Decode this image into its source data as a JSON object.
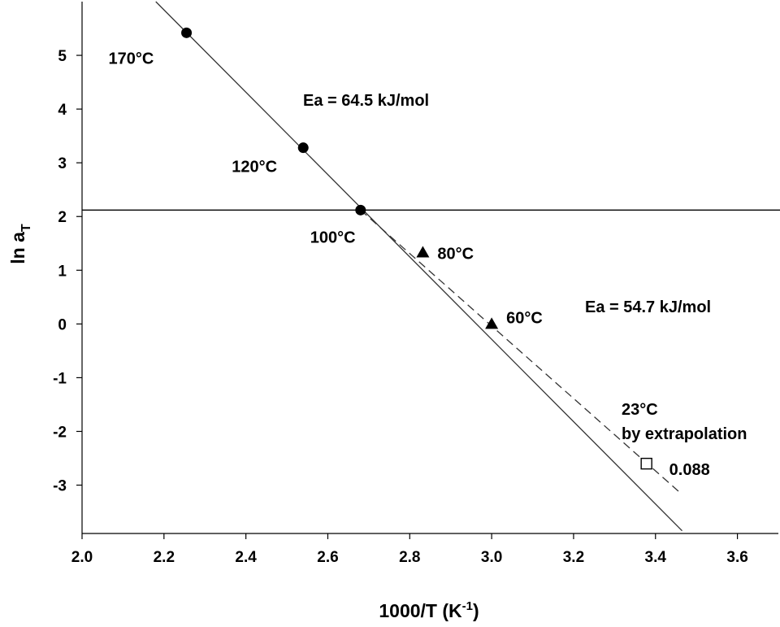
{
  "chart_data": {
    "type": "scatter",
    "xlabel_base": "1000/T (K",
    "xlabel_sup": "-1",
    "xlabel_close": ")",
    "ylabel_base": "ln a",
    "ylabel_sub": "T",
    "xlim": [
      2.0,
      3.7
    ],
    "ylim": [
      -3.9,
      6.0
    ],
    "xticks": [
      "2.0",
      "2.2",
      "2.4",
      "2.6",
      "2.8",
      "3.0",
      "3.2",
      "3.4",
      "3.6"
    ],
    "xtick_values": [
      2.0,
      2.2,
      2.4,
      2.6,
      2.8,
      3.0,
      3.2,
      3.4,
      3.6
    ],
    "yticks": [
      "-3",
      "-2",
      "-1",
      "0",
      "1",
      "2",
      "3",
      "4",
      "5"
    ],
    "ytick_values": [
      -3,
      -2,
      -1,
      0,
      1,
      2,
      3,
      4,
      5
    ],
    "series": [
      {
        "marker": "circle",
        "points": [
          {
            "x": 2.255,
            "y": 5.42,
            "label": "170°C"
          },
          {
            "x": 2.54,
            "y": 3.28,
            "label": "120°C"
          },
          {
            "x": 2.68,
            "y": 2.12,
            "label": "100°C"
          }
        ]
      },
      {
        "marker": "triangle",
        "points": [
          {
            "x": 2.832,
            "y": 1.33,
            "label": "80°C"
          },
          {
            "x": 3.0,
            "y": 0.0,
            "label": "60°C"
          }
        ]
      },
      {
        "marker": "open-square",
        "points": [
          {
            "x": 3.378,
            "y": -2.6,
            "label": "0.088"
          }
        ]
      }
    ],
    "lines": [
      {
        "style": "solid",
        "x": [
          2.18,
          3.465
        ],
        "y": [
          6.0,
          -3.85
        ]
      },
      {
        "style": "dashed",
        "x": [
          2.68,
          3.46
        ],
        "y": [
          2.12,
          -3.14
        ]
      },
      {
        "style": "solid-horizontal",
        "y": 2.12
      }
    ],
    "annotations": {
      "ea_high": "Ea = 64.5 kJ/mol",
      "ea_low": "Ea = 54.7 kJ/mol",
      "extrap_line1": "23°C",
      "extrap_line2": "by extrapolation"
    },
    "grid": false
  }
}
